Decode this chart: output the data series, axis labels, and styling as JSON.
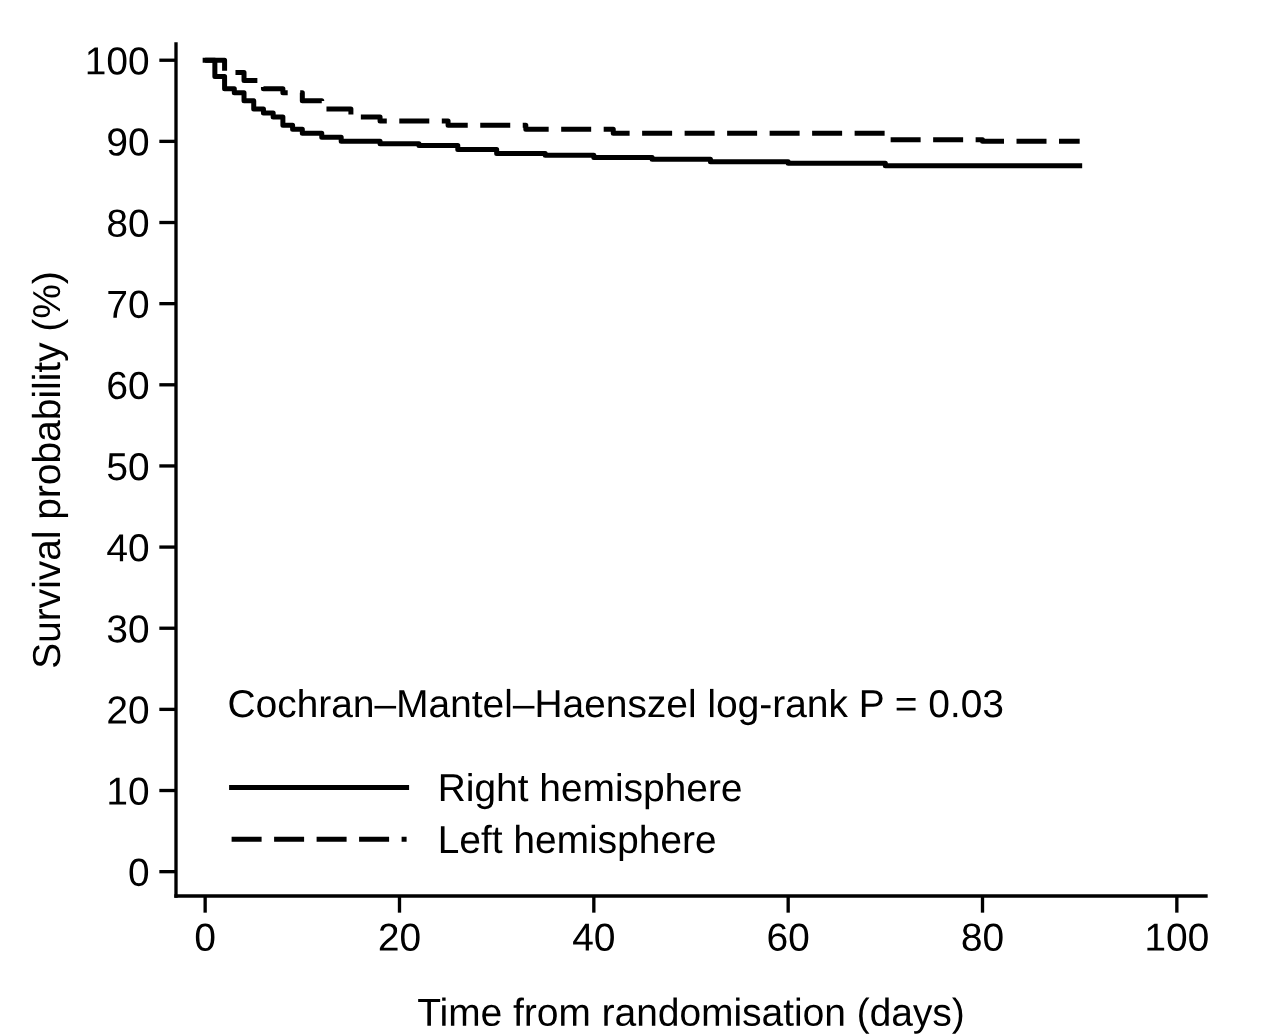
{
  "chart_data": {
    "type": "step",
    "xlabel": "Time from randomisation (days)",
    "ylabel": "Survival probability (%)",
    "series": [
      {
        "name": "Right hemisphere",
        "color": "#000000",
        "line_style": "solid",
        "x": [
          0,
          1,
          2,
          3,
          4,
          5,
          6,
          7,
          8,
          9,
          10,
          12,
          14,
          18,
          22,
          26,
          30,
          35,
          40,
          46,
          52,
          60,
          70,
          80,
          90
        ],
        "values": [
          100,
          98,
          96.5,
          96,
          95,
          94,
          93.5,
          93,
          92,
          91.5,
          91,
          90.5,
          90,
          89.7,
          89.5,
          89,
          88.5,
          88.3,
          88,
          87.8,
          87.5,
          87.3,
          87,
          87,
          87
        ]
      },
      {
        "name": "Left hemisphere",
        "color": "#000000",
        "line_style": "dashed",
        "x": [
          0,
          2,
          4,
          6,
          8,
          10,
          12,
          15,
          18,
          25,
          33,
          42,
          50,
          60,
          70,
          80,
          90
        ],
        "values": [
          100,
          98.5,
          97.5,
          96.5,
          96,
          95,
          94,
          93,
          92.5,
          92,
          91.5,
          91,
          91,
          91,
          90.2,
          90,
          90
        ]
      }
    ],
    "xlim": [
      -3,
      103
    ],
    "ylim": [
      -3,
      102
    ],
    "xticks": [
      0,
      20,
      40,
      60,
      80,
      100
    ],
    "yticks": [
      0,
      10,
      20,
      30,
      40,
      50,
      60,
      70,
      80,
      90,
      100
    ],
    "grid": false,
    "legend": "bottom left",
    "annotations": [
      "Cochran–Mantel–Haenszel log-rank P = 0.03"
    ]
  }
}
